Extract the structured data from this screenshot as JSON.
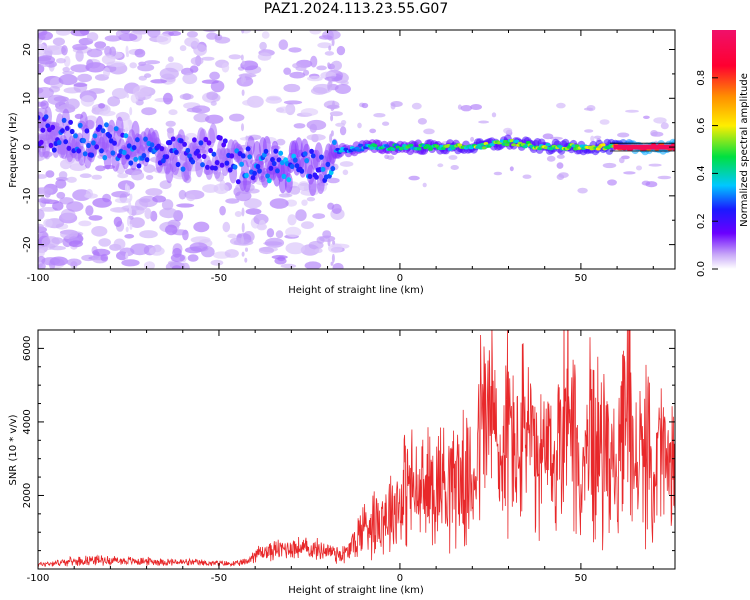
{
  "title": "PAZ1.2024.113.23.55.G07",
  "chart_data": [
    {
      "type": "heatmap",
      "title": "PAZ1.2024.113.23.55.G07",
      "xlabel": "Height of straight line (km)",
      "ylabel": "Frequency (Hz)",
      "colorbar_label": "Normalized spectral amplitude",
      "xlim": [
        -100,
        76
      ],
      "ylim": [
        -25,
        24
      ],
      "xticks": [
        -100,
        -50,
        0,
        50
      ],
      "yticks": [
        20,
        10,
        0,
        -10,
        -20
      ],
      "xtick_labels": [
        "-100",
        "-50",
        "0",
        "50"
      ],
      "ytick_labels": [
        "20",
        "10",
        "0",
        "-10",
        "-20"
      ],
      "colorbar_ticks": [
        0.0,
        0.2,
        0.4,
        0.6,
        0.8
      ],
      "colorbar_tick_labels": [
        "0.0",
        "0.2",
        "0.4",
        "0.6",
        "0.8"
      ],
      "colormap": [
        "#ffffff",
        "#e8d8f8",
        "#9b59f0",
        "#6a00ff",
        "#1a1aff",
        "#00c8ff",
        "#00e040",
        "#ffee00",
        "#ff8000",
        "#ff0040"
      ],
      "ridge": {
        "x": [
          -100,
          -90,
          -80,
          -70,
          -60,
          -50,
          -45,
          -40,
          -30,
          -20,
          -18,
          -10,
          0,
          10,
          20,
          30,
          40,
          50,
          58,
          65,
          76
        ],
        "frequency": [
          3,
          2,
          1,
          -1,
          -2,
          -1,
          -4,
          -3,
          -4,
          -4,
          -1,
          0,
          0,
          0,
          0,
          1,
          0,
          0,
          0,
          0,
          0
        ],
        "amplitude": [
          0.25,
          0.28,
          0.3,
          0.3,
          0.28,
          0.25,
          0.3,
          0.32,
          0.35,
          0.3,
          0.35,
          0.4,
          0.45,
          0.5,
          0.55,
          0.52,
          0.55,
          0.55,
          0.6,
          0.95,
          0.95
        ]
      }
    },
    {
      "type": "line",
      "xlabel": "Height of straight line (km)",
      "ylabel": "SNR (10 * v/v)",
      "xlim": [
        -100,
        76
      ],
      "ylim": [
        0,
        6500
      ],
      "xticks": [
        -100,
        -50,
        0,
        50
      ],
      "yticks": [
        2000,
        4000,
        6000
      ],
      "xtick_labels": [
        "-100",
        "-50",
        "0",
        "50"
      ],
      "ytick_labels": [
        "2000",
        "4000",
        "6000"
      ],
      "color": "#e8282a",
      "series": [
        {
          "x": [
            -100,
            -95,
            -90,
            -85,
            -80,
            -75,
            -70,
            -65,
            -60,
            -55,
            -50,
            -45,
            -42,
            -40,
            -35,
            -30,
            -25,
            -20,
            -15,
            -12,
            -10,
            -5,
            0,
            2,
            5,
            10,
            15,
            20,
            22,
            25,
            28,
            30,
            33,
            35,
            38,
            40,
            43,
            45,
            47,
            50,
            53,
            55,
            58,
            60,
            62,
            63,
            65,
            68,
            70,
            72,
            74,
            76
          ],
          "values": [
            150,
            200,
            250,
            300,
            280,
            260,
            250,
            230,
            220,
            200,
            180,
            170,
            250,
            500,
            600,
            700,
            650,
            600,
            500,
            1000,
            1500,
            1800,
            2300,
            3000,
            2500,
            3000,
            3200,
            2800,
            4800,
            5600,
            3500,
            5000,
            3800,
            5300,
            3000,
            4000,
            3500,
            5200,
            6300,
            2500,
            5000,
            4000,
            4500,
            2500,
            5000,
            6100,
            3500,
            4000,
            3000,
            4200,
            3300,
            3200
          ]
        }
      ]
    }
  ]
}
